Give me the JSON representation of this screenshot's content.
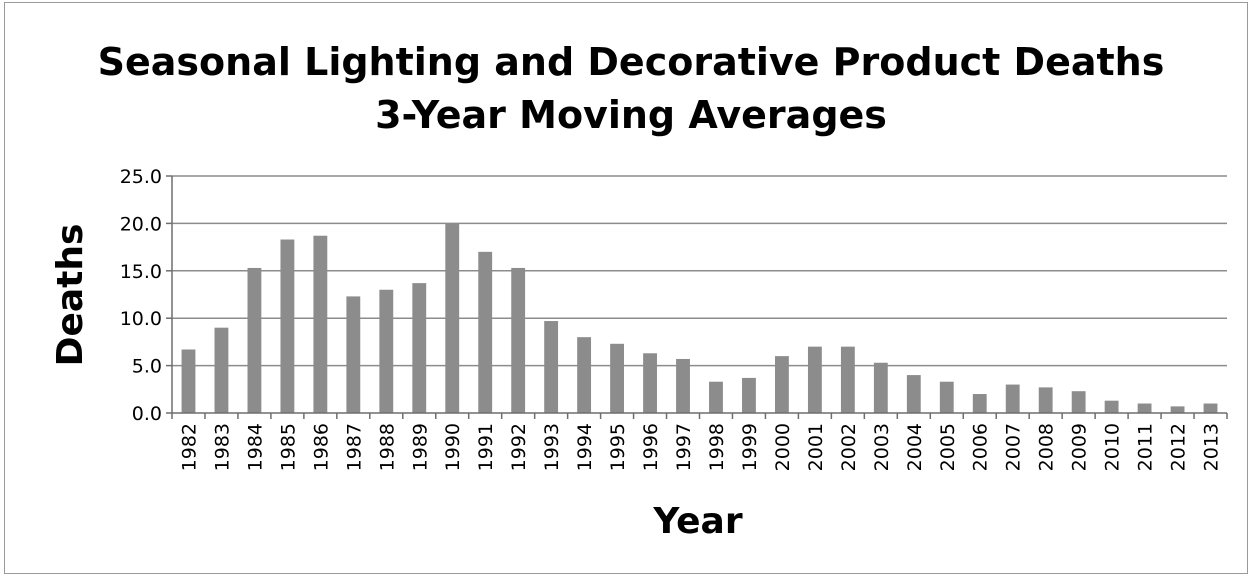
{
  "chart_data": {
    "type": "bar",
    "title": "Seasonal Lighting and Decorative Product Deaths",
    "subtitle": "3-Year Moving Averages",
    "xlabel": "Year",
    "ylabel": "Deaths",
    "ylim": [
      0,
      25
    ],
    "yticks": [
      "0.0",
      "5.0",
      "10.0",
      "15.0",
      "20.0",
      "25.0"
    ],
    "grid": true,
    "categories": [
      "1982",
      "1983",
      "1984",
      "1985",
      "1986",
      "1987",
      "1988",
      "1989",
      "1990",
      "1991",
      "1992",
      "1993",
      "1994",
      "1995",
      "1996",
      "1997",
      "1998",
      "1999",
      "2000",
      "2001",
      "2002",
      "2003",
      "2004",
      "2005",
      "2006",
      "2007",
      "2008",
      "2009",
      "2010",
      "2011",
      "2012",
      "2013"
    ],
    "values": [
      6.7,
      9.0,
      15.3,
      18.3,
      18.7,
      12.3,
      13.0,
      13.7,
      20.0,
      17.0,
      15.3,
      9.7,
      8.0,
      7.3,
      6.3,
      5.7,
      3.3,
      3.7,
      6.0,
      7.0,
      7.0,
      5.3,
      4.0,
      3.3,
      2.0,
      3.0,
      2.7,
      2.3,
      1.3,
      1.0,
      0.7,
      1.0
    ],
    "bar_color": "#8c8c8c",
    "gridline_color": "#8c8c8c"
  }
}
